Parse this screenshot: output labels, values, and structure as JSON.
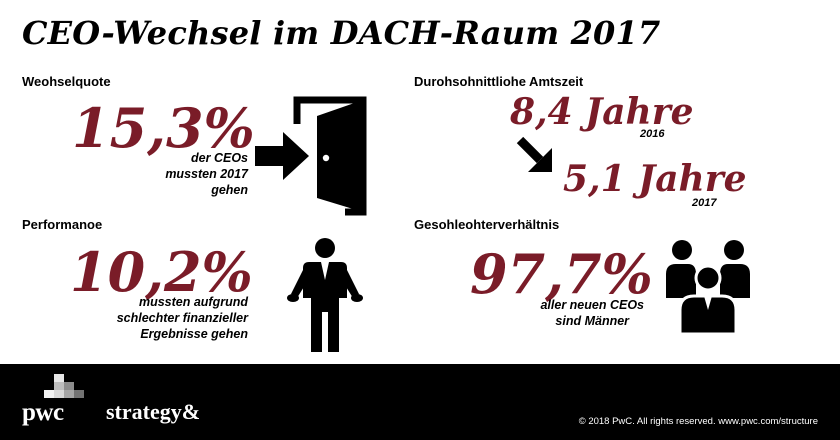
{
  "title": "CEO-Wechsel im DACH-Raum 2017",
  "sections": {
    "wechselquote": {
      "label": "Weohselquote",
      "value": "15,3%",
      "caption": [
        "der CEOs",
        "mussten 2017",
        "gehen"
      ]
    },
    "amtszeit": {
      "label": "Durohsohnittliohe Amtszeit",
      "value_2016": "8,4 Jahre",
      "year_2016": "2016",
      "value_2017": "5,1 Jahre",
      "year_2017": "2017"
    },
    "performance": {
      "label": "Performanoe",
      "value": "10,2%",
      "caption": [
        "mussten aufgrund",
        "schlechter finanzieller",
        "Ergebnisse gehen"
      ]
    },
    "geschlecht": {
      "label": "Gesohleohterverhältnis",
      "value": "97,7%",
      "caption": [
        "aller neuen CEOs",
        "sind Männer"
      ]
    }
  },
  "icons": [
    "door-exit-icon",
    "down-right-arrow-icon",
    "shrugging-man-icon",
    "group-of-people-icon"
  ],
  "colors": {
    "accent": "#7a1c28",
    "footer": "#000000"
  },
  "footer": {
    "pwc": "pwc",
    "strategy": "strategy&",
    "copyright": "© 2018 PwC. All rights reserved. www.pwc.com/structure"
  }
}
